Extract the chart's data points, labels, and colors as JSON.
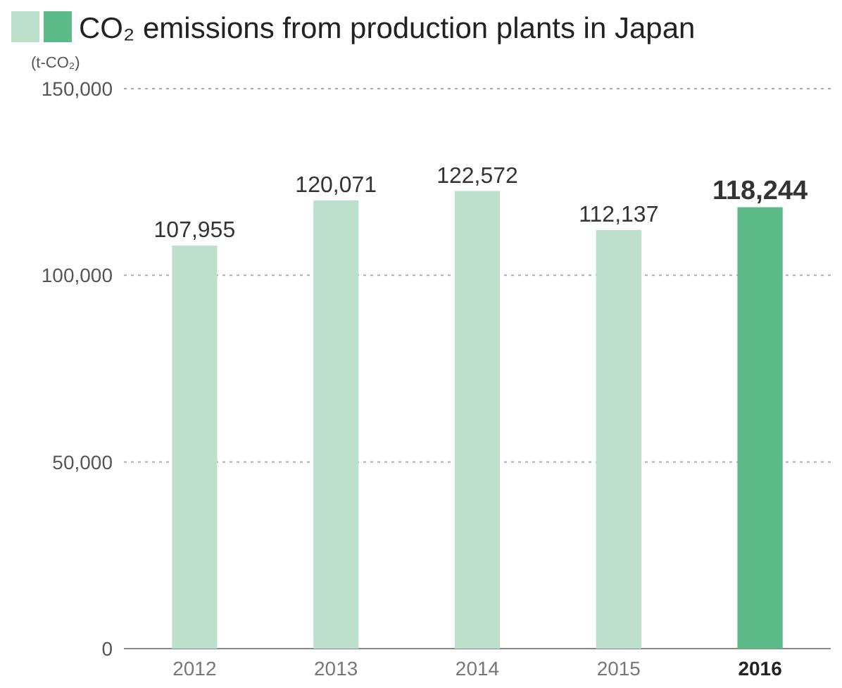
{
  "chart_data": {
    "type": "bar",
    "title": "CO₂ emissions from production plants in Japan",
    "ylabel": "(t-CO₂)",
    "categories": [
      "2012",
      "2013",
      "2014",
      "2015",
      "2016"
    ],
    "values": [
      107955,
      120071,
      122572,
      112137,
      118244
    ],
    "colors": [
      "#bde0cd",
      "#bde0cd",
      "#bde0cd",
      "#bde0cd",
      "#5dbb8a"
    ],
    "value_labels": [
      "107,955",
      "120,071",
      "122,572",
      "112,137",
      "118,244"
    ],
    "ylim": [
      0,
      150000
    ],
    "yticks": [
      {
        "value": 0,
        "label": "0"
      },
      {
        "value": 50000,
        "label": "50,000"
      },
      {
        "value": 100000,
        "label": "100,000"
      },
      {
        "value": 150000,
        "label": "150,000"
      }
    ],
    "grid": "y"
  }
}
